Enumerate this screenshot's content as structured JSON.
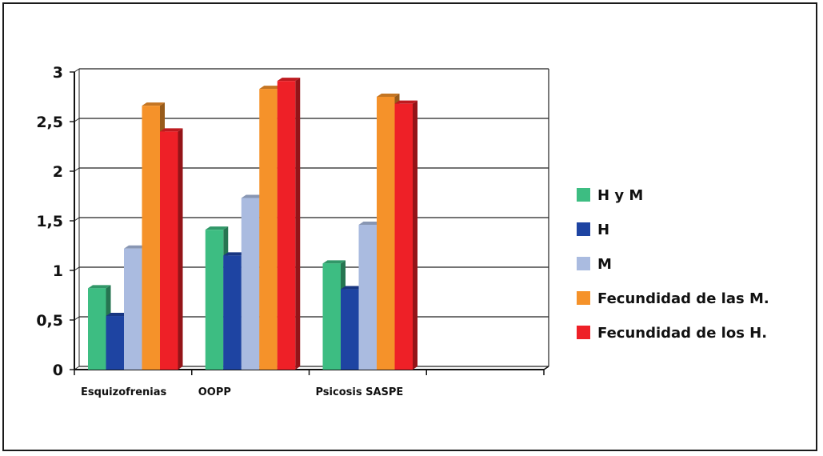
{
  "chart_data": {
    "type": "bar",
    "categories": [
      "Esquizofrenias",
      "OOPP",
      "Psicosis SASPE"
    ],
    "empty_slots": 1,
    "series": [
      {
        "name": "H y M",
        "color": "#3dbd82",
        "values": [
          0.82,
          1.41,
          1.07
        ]
      },
      {
        "name": "H",
        "color": "#1e44a2",
        "values": [
          0.54,
          1.15,
          0.81
        ]
      },
      {
        "name": "M",
        "color": "#aabbe0",
        "values": [
          1.22,
          1.73,
          1.46
        ]
      },
      {
        "name": "Fecundidad de las M.",
        "color": "#f5922a",
        "values": [
          2.66,
          2.83,
          2.75
        ]
      },
      {
        "name": "Fecundidad de los H.",
        "color": "#ee2027",
        "values": [
          2.4,
          2.91,
          2.68
        ]
      }
    ],
    "ylim": [
      0,
      3
    ],
    "yticks": [
      "0",
      "0,5",
      "1",
      "1,5",
      "2",
      "2,5",
      "3"
    ],
    "grid": true,
    "three_d": true,
    "legend_position": "right",
    "title": "",
    "xlabel": "",
    "ylabel": ""
  }
}
